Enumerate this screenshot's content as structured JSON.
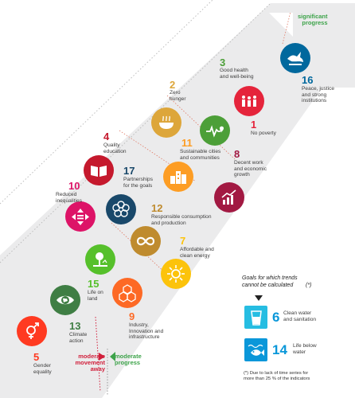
{
  "colors": {
    "goal1": "#E5243B",
    "goal2": "#DDA63A",
    "goal3": "#4C9F38",
    "goal4": "#C5192D",
    "goal5": "#FF3A21",
    "goal6": "#26BDE2",
    "goal7": "#FCC30B",
    "goal8": "#A21942",
    "goal9": "#FD6925",
    "goal10": "#DD1367",
    "goal11": "#FD9D24",
    "goal12": "#BF8B2E",
    "goal13": "#3F7E44",
    "goal14": "#0A97D9",
    "goal15": "#56C02B",
    "goal16": "#00689D",
    "goal17": "#19486A",
    "legend_red": "#D11F3B",
    "legend_green": "#3DA34A"
  },
  "goals": {
    "g1": {
      "number": "1",
      "label": "No poverty",
      "icon": "family-icon"
    },
    "g2": {
      "number": "2",
      "label": "Zero\nhunger",
      "icon": "bowl-icon"
    },
    "g3": {
      "number": "3",
      "label": "Good health\nand well-being",
      "icon": "heartbeat-icon"
    },
    "g4": {
      "number": "4",
      "label": "Quality\neducation",
      "icon": "book-icon"
    },
    "g5": {
      "number": "5",
      "label": "Gender\nequality",
      "icon": "gender-icon"
    },
    "g6": {
      "number": "6",
      "label": "Clean water\nand sanitation",
      "icon": "water-glass-icon"
    },
    "g7": {
      "number": "7",
      "label": "Affordable and\nclean energy",
      "icon": "sun-icon"
    },
    "g8": {
      "number": "8",
      "label": "Decent work\nand economic\ngrowth",
      "icon": "growth-chart-icon"
    },
    "g9": {
      "number": "9",
      "label": "Industry,\nInnovation and\ninfrastructure",
      "icon": "cubes-icon"
    },
    "g10": {
      "number": "10",
      "label": "Reduced\ninequalities",
      "icon": "equality-icon"
    },
    "g11": {
      "number": "11",
      "label": "Sustainable cities\nand communities",
      "icon": "buildings-icon"
    },
    "g12": {
      "number": "12",
      "label": "Responsible consumption\nand production",
      "icon": "infinity-icon"
    },
    "g13": {
      "number": "13",
      "label": "Climate\naction",
      "icon": "eye-globe-icon"
    },
    "g14": {
      "number": "14",
      "label": "Life below\nwater",
      "icon": "fish-icon"
    },
    "g15": {
      "number": "15",
      "label": "Life on\nland",
      "icon": "tree-icon"
    },
    "g16": {
      "number": "16",
      "label": "Peace, justice\nand strong\ninstitutions",
      "icon": "dove-icon"
    },
    "g17": {
      "number": "17",
      "label": "Partnerships\nfor the goals",
      "icon": "rings-icon"
    }
  },
  "legend": {
    "significant": "significant\nprogress",
    "moderate_progress": "moderate\nprogress",
    "moderate_away": "moderate\nmovement\naway",
    "trend_title": "Goals for which trends\ncannot be calculated",
    "trend_marker": "(*)",
    "footnote": "(*)  Due to lack of time series for\nmore than 25 % of the indicators"
  }
}
